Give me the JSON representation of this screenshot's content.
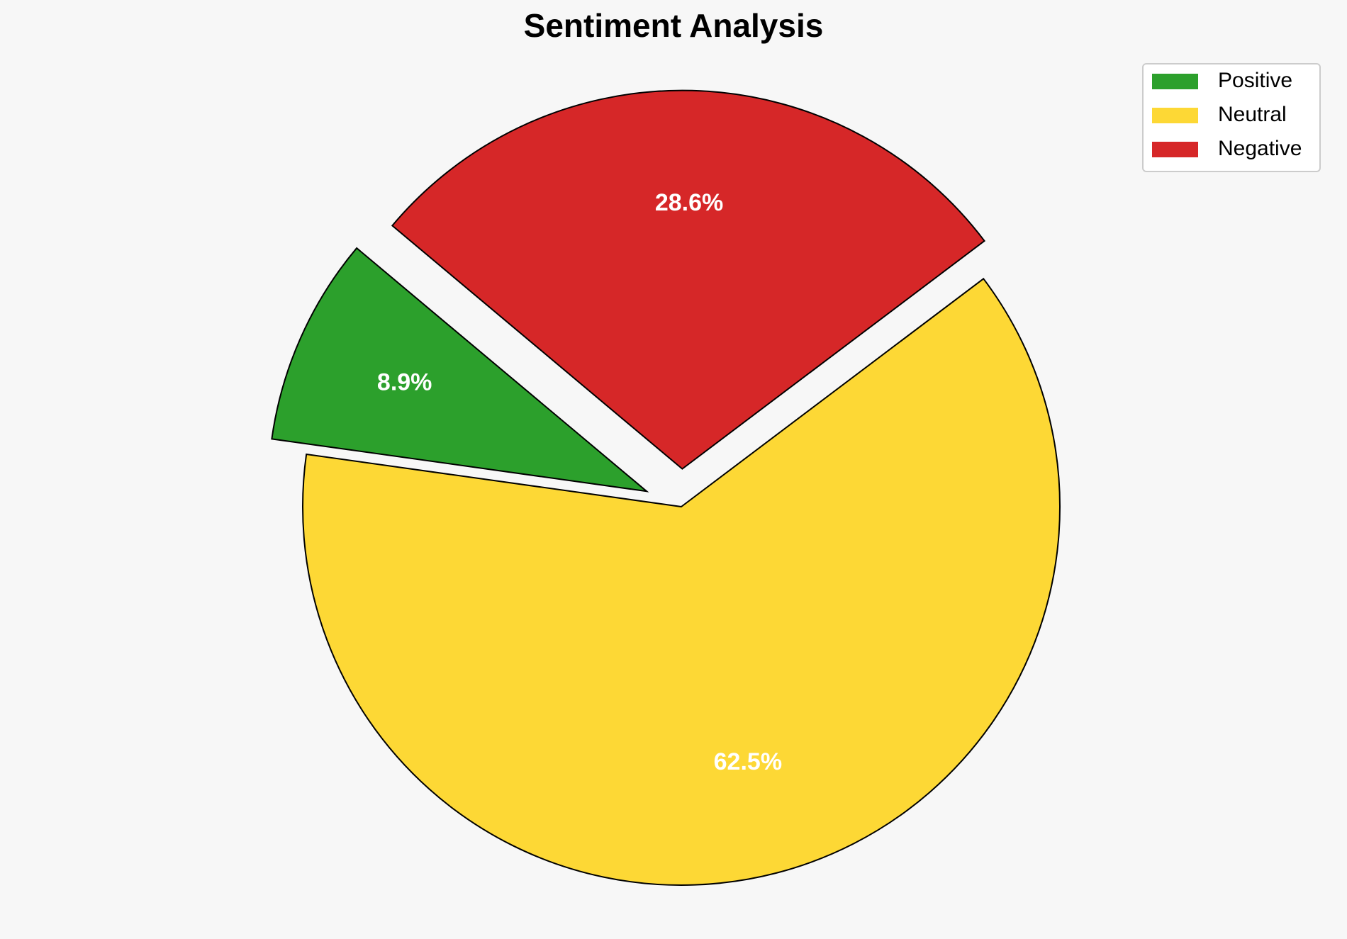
{
  "chart_data": {
    "type": "pie",
    "title": "Sentiment Analysis",
    "categories": [
      "Positive",
      "Neutral",
      "Negative"
    ],
    "values": [
      8.9,
      62.5,
      28.6
    ],
    "value_labels": [
      "8.9%",
      "62.5%",
      "28.6%"
    ],
    "colors": [
      "#2ca02c",
      "#fdd835",
      "#d62728"
    ],
    "explode": [
      0.1,
      0,
      0.1
    ],
    "startangle": 140,
    "legend": "upper right"
  }
}
